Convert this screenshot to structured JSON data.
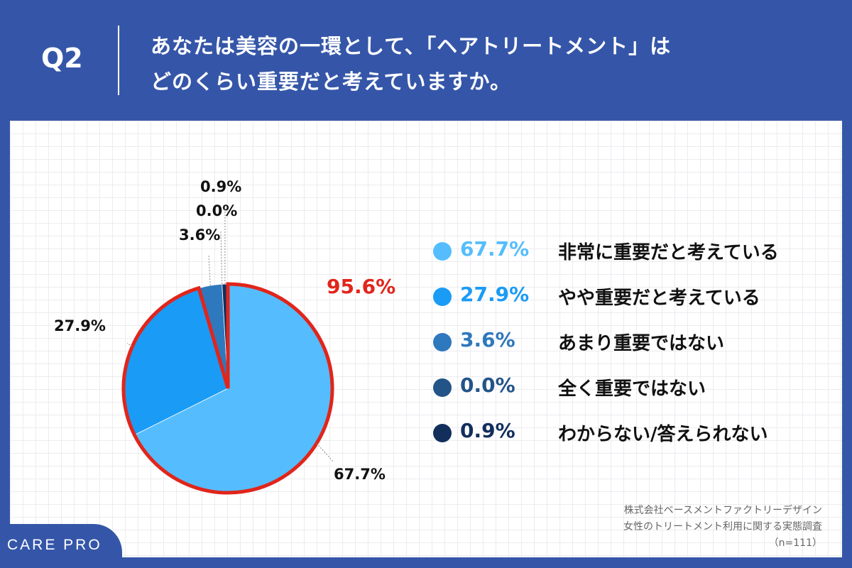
{
  "header": {
    "question_number": "Q2",
    "question_line1": "あなたは美容の一環として、「ヘアトリートメント」は",
    "question_line2": "どのくらい重要だと考えていますか。"
  },
  "chart_data": {
    "type": "pie",
    "categories": [
      "非常に重要だと考えている",
      "やや重要だと考えている",
      "あまり重要ではない",
      "全く重要ではない",
      "わからない/答えられない"
    ],
    "values": [
      67.7,
      27.9,
      3.6,
      0.0,
      0.9
    ],
    "value_labels": [
      "67.7%",
      "27.9%",
      "3.6%",
      "0.0%",
      "0.9%"
    ],
    "colors": [
      "#55bdfd",
      "#1a9bf5",
      "#2e78bd",
      "#235487",
      "#122f5c"
    ],
    "highlight": {
      "label": "95.6%",
      "covers": [
        "非常に重要だと考えている",
        "やや重要だと考えている"
      ],
      "color": "#e1251b"
    },
    "legend_placement": "right"
  },
  "source": {
    "line1": "株式会社ベースメントファクトリーデザイン",
    "line2": "女性のトリートメント利用に関する実態調査",
    "line3": "（n=111）"
  },
  "brand": {
    "name": "CARE PRO"
  }
}
